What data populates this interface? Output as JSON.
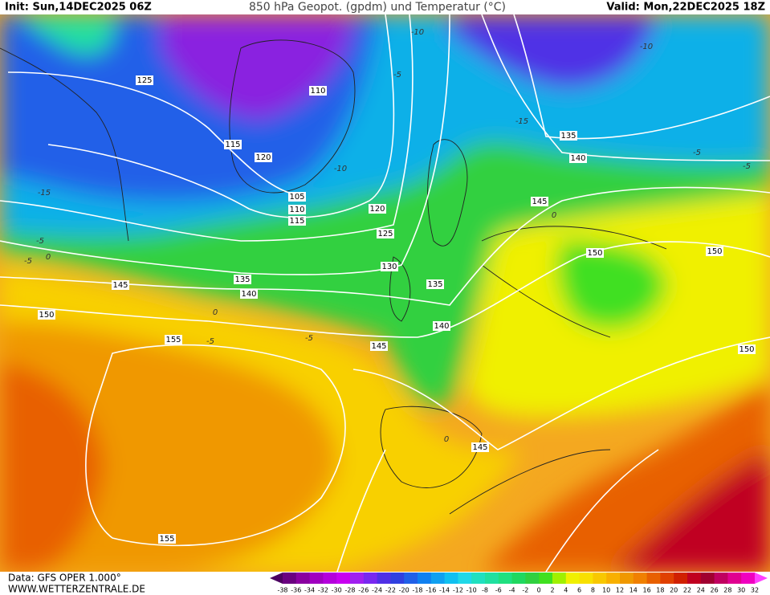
{
  "header": {
    "init": "Init: Sun,14DEC2025 06Z",
    "title": "850 hPa Geopot. (gpdm) und Temperatur (°C)",
    "valid": "Valid: Mon,22DEC2025 18Z"
  },
  "footer": {
    "data": "Data: GFS OPER 1.000°",
    "site": "WWW.WETTERZENTRALE.DE"
  },
  "contour_labels": [
    125,
    110,
    115,
    120,
    105,
    110,
    115,
    120,
    125,
    130,
    135,
    140,
    135,
    145,
    150,
    155,
    145,
    140,
    145,
    155,
    135,
    140,
    145,
    150,
    150,
    150
  ],
  "temperature_labels": [
    -10,
    -5,
    -10,
    -10,
    -15,
    -5,
    -5,
    0,
    0,
    -5,
    -5,
    0,
    0,
    -5,
    -15,
    -5
  ],
  "colorbar": {
    "labels": [
      -38,
      -36,
      -34,
      -32,
      -30,
      -28,
      -26,
      -24,
      -22,
      -20,
      -18,
      -16,
      -14,
      -12,
      -10,
      -8,
      -6,
      -4,
      -2,
      0,
      2,
      4,
      6,
      8,
      10,
      12,
      14,
      16,
      18,
      20,
      22,
      24,
      26,
      28,
      30,
      32
    ],
    "colors": [
      "#4b0060",
      "#6a0080",
      "#8a00a0",
      "#a000c0",
      "#b400dc",
      "#c800f0",
      "#a020f0",
      "#7828f0",
      "#5030e6",
      "#3040e0",
      "#2060e8",
      "#1080f0",
      "#10a0f0",
      "#10c0f0",
      "#20d8e8",
      "#20e0c0",
      "#20e0a0",
      "#20e080",
      "#20d860",
      "#30d040",
      "#40e020",
      "#a0f000",
      "#f0f000",
      "#f8e000",
      "#f8c800",
      "#f8b000",
      "#f09800",
      "#f08000",
      "#e86000",
      "#e04000",
      "#d02000",
      "#c00020",
      "#a00030",
      "#c00060",
      "#e00090",
      "#f000c0",
      "#ff40ff"
    ]
  }
}
